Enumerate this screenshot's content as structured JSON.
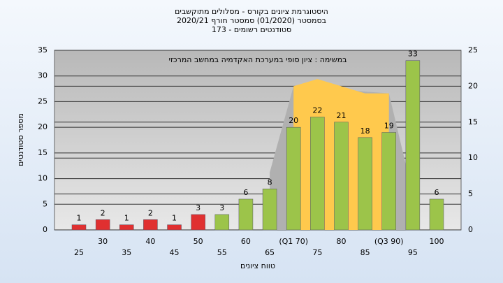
{
  "chart_data": {
    "type": "bar",
    "title_lines": [
      "היסטוגרמת ציונים בקורס - מסלולים מתוקשבים",
      "בסמסטר (01/2020) סמסטר חורף 2020/21",
      "173 - סטודנטים רשומים"
    ],
    "annotation": "במשימה : ציון סופי במערכת האקדמיה במחשב המרכזי",
    "y_label": "מספר סטודנטים",
    "x_label": "טווח ציונים",
    "categories": [
      "25",
      "30",
      "35",
      "40",
      "45",
      "50",
      "55",
      "60",
      "65",
      "(Q1 70)",
      "75",
      "80",
      "85",
      "(Q3 90)",
      "95",
      "100"
    ],
    "values": [
      1,
      2,
      1,
      2,
      1,
      3,
      3,
      6,
      8,
      20,
      22,
      21,
      18,
      19,
      33,
      6
    ],
    "colors": [
      "#e03030",
      "#e03030",
      "#e03030",
      "#e03030",
      "#e03030",
      "#e03030",
      "#9cc44a",
      "#9cc44a",
      "#9cc44a",
      "#9cc44a",
      "#9cc44a",
      "#9cc44a",
      "#9cc44a",
      "#9cc44a",
      "#9cc44a",
      "#9cc44a"
    ],
    "areas": [
      {
        "color": "#b0b0b0",
        "axis": "y2",
        "values": [
          null,
          null,
          null,
          null,
          null,
          null,
          null,
          null,
          8,
          20,
          null,
          null,
          null,
          19,
          5,
          null
        ]
      },
      {
        "color": "#ffc94d",
        "axis": "y2",
        "values": [
          null,
          null,
          null,
          null,
          null,
          null,
          null,
          null,
          null,
          20,
          21,
          20,
          19,
          19,
          null,
          null
        ]
      }
    ],
    "ylim": [
      0,
      35
    ],
    "yticks": [
      0,
      5,
      10,
      15,
      20,
      25,
      30,
      35
    ],
    "y2lim": [
      0,
      25
    ],
    "y2ticks": [
      0,
      5,
      10,
      15,
      20,
      25
    ],
    "grid": true
  }
}
